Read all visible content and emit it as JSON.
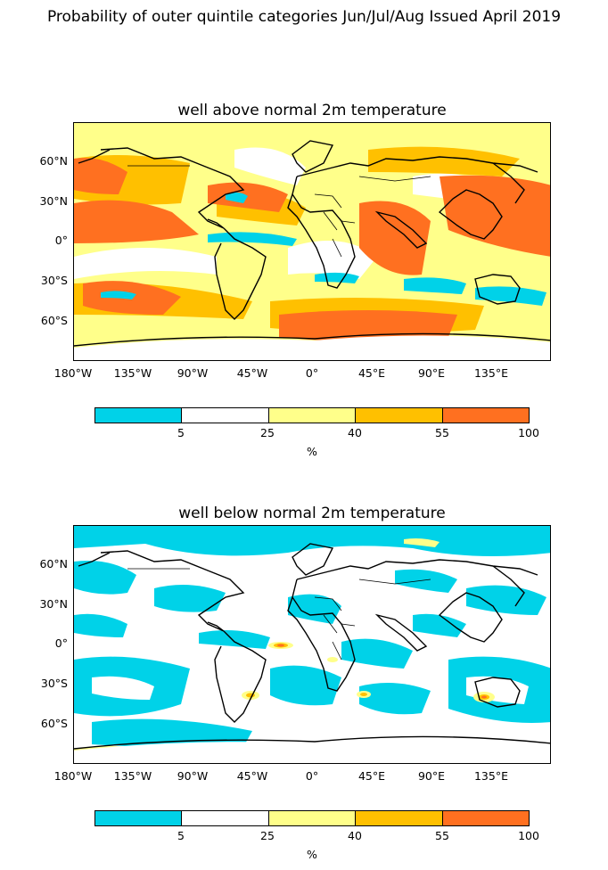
{
  "suptitle": "Probability of outer quintile categories Jun/Jul/Aug Issued April 2019",
  "panels": [
    {
      "title": "well above normal 2m temperature"
    },
    {
      "title": "well below normal 2m temperature"
    }
  ],
  "lat_ticks": [
    "60°N",
    "30°N",
    "0°",
    "30°S",
    "60°S"
  ],
  "lon_ticks": [
    "180°W",
    "135°W",
    "90°W",
    "45°W",
    "0°",
    "45°E",
    "90°E",
    "135°E"
  ],
  "colorbar": {
    "ticks": [
      "5",
      "25",
      "40",
      "55",
      "100"
    ],
    "unit": "%",
    "colors": [
      "#00d2e8",
      "#ffffff",
      "#ffff8a",
      "#ffc000",
      "#ff7020"
    ]
  }
}
